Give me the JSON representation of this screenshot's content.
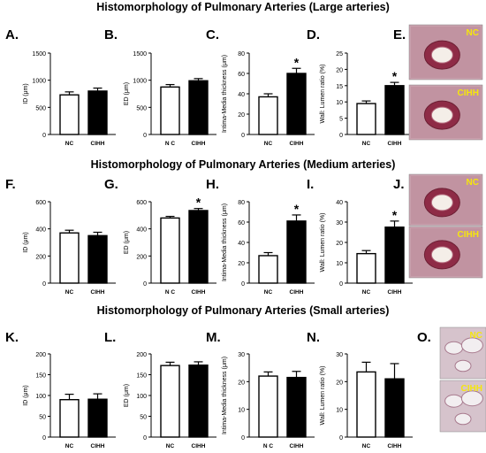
{
  "sections": [
    {
      "title": "Histomorphology of Pulmonary Arteries (Large arteries)",
      "panels": [
        {
          "letter": "A.",
          "ylabel": "ID (μm)",
          "ylim": [
            0,
            1500
          ],
          "ticks": [
            "0",
            "500",
            "1000",
            "1500"
          ],
          "categories": [
            "NC",
            "CIHH"
          ],
          "values": [
            730,
            800
          ],
          "errors": [
            55,
            55
          ],
          "sig": [
            "",
            ""
          ]
        },
        {
          "letter": "B.",
          "ylabel": "ED (μm)",
          "ylim": [
            0,
            1500
          ],
          "ticks": [
            "0",
            "500",
            "1000",
            "1500"
          ],
          "categories": [
            "N C",
            "CIHH"
          ],
          "values": [
            875,
            990
          ],
          "errors": [
            45,
            40
          ],
          "sig": [
            "",
            ""
          ]
        },
        {
          "letter": "C.",
          "ylabel": "Intima-Media thickness (μm)",
          "ylim": [
            0,
            80
          ],
          "ticks": [
            "0",
            "20",
            "40",
            "60",
            "80"
          ],
          "categories": [
            "NC",
            "CIHH"
          ],
          "values": [
            37,
            60
          ],
          "errors": [
            3,
            5
          ],
          "sig": [
            "",
            "*"
          ]
        },
        {
          "letter": "D.",
          "ylabel": "Wall: Lumen ratio (%)",
          "ylim": [
            0,
            25
          ],
          "ticks": [
            "0",
            "5",
            "10",
            "15",
            "20",
            "25"
          ],
          "categories": [
            "NC",
            "CIHH"
          ],
          "values": [
            9.5,
            15
          ],
          "errors": [
            0.8,
            1.0
          ],
          "sig": [
            "",
            "*"
          ]
        }
      ],
      "micro": {
        "letter": "E.",
        "labels": [
          "NC",
          "CIHH"
        ]
      }
    },
    {
      "title": "Histomorphology of Pulmonary Arteries (Medium arteries)",
      "panels": [
        {
          "letter": "F.",
          "ylabel": "ID (μm)",
          "ylim": [
            0,
            600
          ],
          "ticks": [
            "0",
            "200",
            "400",
            "600"
          ],
          "categories": [
            "NC",
            "CIHH"
          ],
          "values": [
            370,
            350
          ],
          "errors": [
            20,
            25
          ],
          "sig": [
            "",
            ""
          ]
        },
        {
          "letter": "G.",
          "ylabel": "ED (μm)",
          "ylim": [
            0,
            600
          ],
          "ticks": [
            "0",
            "200",
            "400",
            "600"
          ],
          "categories": [
            "N C",
            "CIHH"
          ],
          "values": [
            480,
            535
          ],
          "errors": [
            12,
            15
          ],
          "sig": [
            "",
            "*"
          ]
        },
        {
          "letter": "H.",
          "ylabel": "Intima-Media thickness (μm)",
          "ylim": [
            0,
            80
          ],
          "ticks": [
            "0",
            "20",
            "40",
            "60",
            "80"
          ],
          "categories": [
            "NC",
            "CIHH"
          ],
          "values": [
            27,
            61
          ],
          "errors": [
            3,
            6
          ],
          "sig": [
            "",
            "*"
          ]
        },
        {
          "letter": "I.",
          "ylabel": "Wall: Lumen ratio (%)",
          "ylim": [
            0,
            40
          ],
          "ticks": [
            "0",
            "10",
            "20",
            "30",
            "40"
          ],
          "categories": [
            "NC",
            "CIHH"
          ],
          "values": [
            14.5,
            27.5
          ],
          "errors": [
            1.5,
            3
          ],
          "sig": [
            "",
            "*"
          ]
        }
      ],
      "micro": {
        "letter": "J.",
        "labels": [
          "NC",
          "CIHH"
        ]
      }
    },
    {
      "title": "Histomorphology of Pulmonary Arteries (Small arteries)",
      "panels": [
        {
          "letter": "K.",
          "ylabel": "ID (μm)",
          "ylim": [
            0,
            200
          ],
          "ticks": [
            "0",
            "50",
            "100",
            "150",
            "200"
          ],
          "categories": [
            "NC",
            "CIHH"
          ],
          "values": [
            90,
            91
          ],
          "errors": [
            13,
            13
          ],
          "sig": [
            "",
            ""
          ]
        },
        {
          "letter": "L.",
          "ylabel": "ED (μm)",
          "ylim": [
            0,
            200
          ],
          "ticks": [
            "0",
            "50",
            "100",
            "150",
            "200"
          ],
          "categories": [
            "NC",
            "CIHH"
          ],
          "values": [
            172,
            173
          ],
          "errors": [
            8,
            8
          ],
          "sig": [
            "",
            ""
          ]
        },
        {
          "letter": "M.",
          "ylabel": "Intima-Media thickness (μm)",
          "ylim": [
            0,
            30
          ],
          "ticks": [
            "0",
            "10",
            "20",
            "30"
          ],
          "categories": [
            "N C",
            "CIHH"
          ],
          "values": [
            22,
            21.5
          ],
          "errors": [
            1.5,
            2.2
          ],
          "sig": [
            "",
            ""
          ]
        },
        {
          "letter": "N.",
          "ylabel": "Wall: Lumen ratio (%)",
          "ylim": [
            0,
            30
          ],
          "ticks": [
            "0",
            "10",
            "20",
            "30"
          ],
          "categories": [
            "NC",
            "CIHH"
          ],
          "values": [
            23.5,
            21
          ],
          "errors": [
            3.5,
            5.5
          ],
          "sig": [
            "",
            ""
          ]
        }
      ],
      "micro": {
        "letter": "O.",
        "labels": [
          "NC",
          "CIHH"
        ]
      }
    }
  ],
  "colors": {
    "nc_bar": "#ffffff",
    "cihh_bar": "#000000",
    "label_yellow": "#f5e60c"
  },
  "chart_data": [
    {
      "type": "bar",
      "title": "",
      "xlabel": "",
      "ylabel": "ID (μm)",
      "categories": [
        "NC",
        "CIHH"
      ],
      "values": [
        730,
        800
      ],
      "ylim": [
        0,
        1500
      ]
    },
    {
      "type": "bar",
      "title": "",
      "xlabel": "",
      "ylabel": "ED (μm)",
      "categories": [
        "NC",
        "CIHH"
      ],
      "values": [
        875,
        990
      ],
      "ylim": [
        0,
        1500
      ]
    },
    {
      "type": "bar",
      "title": "",
      "xlabel": "",
      "ylabel": "Intima-Media thickness (μm)",
      "categories": [
        "NC",
        "CIHH"
      ],
      "values": [
        37,
        60
      ],
      "ylim": [
        0,
        80
      ]
    },
    {
      "type": "bar",
      "title": "",
      "xlabel": "",
      "ylabel": "Wall: Lumen ratio (%)",
      "categories": [
        "NC",
        "CIHH"
      ],
      "values": [
        9.5,
        15
      ],
      "ylim": [
        0,
        25
      ]
    },
    {
      "type": "bar",
      "title": "",
      "xlabel": "",
      "ylabel": "ID (μm)",
      "categories": [
        "NC",
        "CIHH"
      ],
      "values": [
        370,
        350
      ],
      "ylim": [
        0,
        600
      ]
    },
    {
      "type": "bar",
      "title": "",
      "xlabel": "",
      "ylabel": "ED (μm)",
      "categories": [
        "NC",
        "CIHH"
      ],
      "values": [
        480,
        535
      ],
      "ylim": [
        0,
        600
      ]
    },
    {
      "type": "bar",
      "title": "",
      "xlabel": "",
      "ylabel": "Intima-Media thickness (μm)",
      "categories": [
        "NC",
        "CIHH"
      ],
      "values": [
        27,
        61
      ],
      "ylim": [
        0,
        80
      ]
    },
    {
      "type": "bar",
      "title": "",
      "xlabel": "",
      "ylabel": "Wall: Lumen ratio (%)",
      "categories": [
        "NC",
        "CIHH"
      ],
      "values": [
        14.5,
        27.5
      ],
      "ylim": [
        0,
        40
      ]
    },
    {
      "type": "bar",
      "title": "",
      "xlabel": "",
      "ylabel": "ID (μm)",
      "categories": [
        "NC",
        "CIHH"
      ],
      "values": [
        90,
        91
      ],
      "ylim": [
        0,
        200
      ]
    },
    {
      "type": "bar",
      "title": "",
      "xlabel": "",
      "ylabel": "ED (μm)",
      "categories": [
        "NC",
        "CIHH"
      ],
      "values": [
        172,
        173
      ],
      "ylim": [
        0,
        200
      ]
    },
    {
      "type": "bar",
      "title": "",
      "xlabel": "",
      "ylabel": "Intima-Media thickness (μm)",
      "categories": [
        "NC",
        "CIHH"
      ],
      "values": [
        22,
        21.5
      ],
      "ylim": [
        0,
        30
      ]
    },
    {
      "type": "bar",
      "title": "",
      "xlabel": "",
      "ylabel": "Wall: Lumen ratio (%)",
      "categories": [
        "NC",
        "CIHH"
      ],
      "values": [
        23.5,
        21
      ],
      "ylim": [
        0,
        30
      ]
    }
  ]
}
